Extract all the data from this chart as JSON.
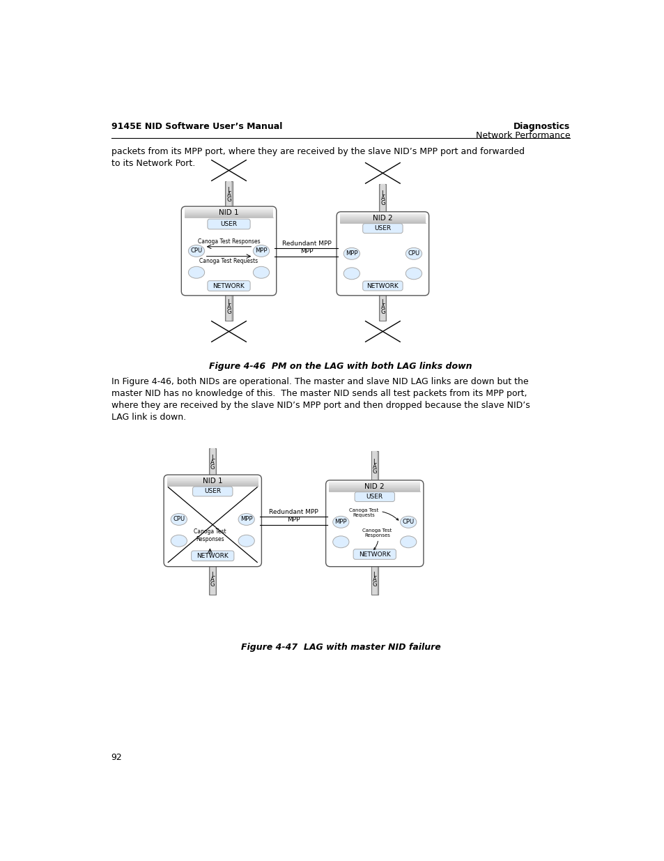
{
  "title_left": "9145E NID Software User’s Manual",
  "title_right": "Diagnostics",
  "subtitle_right": "Network Performance",
  "body_text1": "packets from its MPP port, where they are received by the slave NID’s MPP port and forwarded\nto its Network Port.",
  "fig46_caption": "Figure 4-46  PM on the LAG with both LAG links down",
  "body_text2": "In Figure 4-46, both NIDs are operational. The master and slave NID LAG links are down but the\nmaster NID has no knowledge of this.  The master NID sends all test packets from its MPP port,\nwhere they are received by the slave NID’s MPP port and then dropped because the slave NID’s\nLAG link is down.",
  "fig47_caption": "Figure 4-47  LAG with master NID failure",
  "page_number": "92",
  "bg_color": "#ffffff"
}
